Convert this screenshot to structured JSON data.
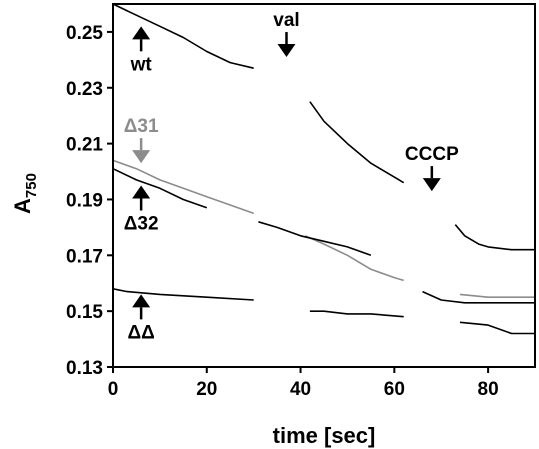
{
  "chart_data": {
    "type": "line",
    "xlabel": "time [sec]",
    "ylabel": "A",
    "ylabel_subscript": "750",
    "xlim": [
      0,
      90
    ],
    "ylim": [
      0.13,
      0.26
    ],
    "xticks": [
      0,
      20,
      40,
      60,
      80
    ],
    "xtick_labels": [
      "0",
      "20",
      "40",
      "60",
      "80"
    ],
    "yticks": [
      0.25,
      0.23,
      0.21,
      0.19,
      0.17,
      0.15,
      0.13
    ],
    "ytick_labels": [
      "0.25",
      "0.23",
      "0.21",
      "0.19",
      "0.17",
      "0.15",
      "0.13"
    ],
    "grid": false,
    "colors": {
      "black": "#000000",
      "gray": "#8c8c8c"
    },
    "series": [
      {
        "color": "black",
        "segments": [
          [
            [
              0,
              0.26
            ],
            [
              5,
              0.256
            ],
            [
              10,
              0.252
            ],
            [
              15,
              0.248
            ],
            [
              20,
              0.243
            ],
            [
              25,
              0.239
            ],
            [
              30,
              0.237
            ]
          ],
          [
            [
              42,
              0.225
            ],
            [
              45,
              0.218
            ],
            [
              50,
              0.21
            ],
            [
              55,
              0.203
            ],
            [
              60,
              0.198
            ],
            [
              62,
              0.196
            ]
          ],
          [
            [
              73,
              0.181
            ],
            [
              75,
              0.177
            ],
            [
              78,
              0.174
            ],
            [
              80,
              0.173
            ],
            [
              85,
              0.172
            ],
            [
              90,
              0.172
            ]
          ]
        ]
      },
      {
        "color": "gray",
        "segments": [
          [
            [
              0,
              0.204
            ],
            [
              5,
              0.201
            ],
            [
              10,
              0.197
            ],
            [
              15,
              0.194
            ],
            [
              20,
              0.191
            ],
            [
              25,
              0.188
            ],
            [
              30,
              0.185
            ]
          ],
          [
            [
              41,
              0.177
            ],
            [
              45,
              0.174
            ],
            [
              50,
              0.17
            ],
            [
              55,
              0.165
            ],
            [
              60,
              0.162
            ],
            [
              62,
              0.161
            ]
          ],
          [
            [
              74,
              0.156
            ],
            [
              80,
              0.155
            ],
            [
              85,
              0.155
            ],
            [
              90,
              0.155
            ]
          ]
        ]
      },
      {
        "color": "black",
        "segments": [
          [
            [
              0,
              0.201
            ],
            [
              5,
              0.197
            ],
            [
              10,
              0.194
            ],
            [
              15,
              0.19
            ],
            [
              20,
              0.187
            ]
          ],
          [
            [
              31,
              0.182
            ],
            [
              35,
              0.18
            ],
            [
              40,
              0.177
            ],
            [
              45,
              0.175
            ],
            [
              50,
              0.173
            ],
            [
              55,
              0.17
            ]
          ],
          [
            [
              66,
              0.157
            ],
            [
              70,
              0.154
            ],
            [
              75,
              0.153
            ],
            [
              80,
              0.153
            ],
            [
              90,
              0.153
            ]
          ]
        ]
      },
      {
        "color": "black",
        "segments": [
          [
            [
              0,
              0.158
            ],
            [
              3,
              0.157
            ],
            [
              10,
              0.156
            ],
            [
              20,
              0.155
            ],
            [
              30,
              0.154
            ]
          ],
          [
            [
              42,
              0.15
            ],
            [
              45,
              0.15
            ],
            [
              50,
              0.149
            ],
            [
              55,
              0.149
            ],
            [
              62,
              0.148
            ]
          ],
          [
            [
              74,
              0.146
            ],
            [
              80,
              0.145
            ],
            [
              85,
              0.142
            ],
            [
              90,
              0.142
            ]
          ]
        ]
      }
    ],
    "annotations": [
      {
        "label": "wt",
        "x": 6,
        "y": 0.252,
        "direction": "up",
        "color": "black",
        "label_pos": "below"
      },
      {
        "label": "Δ31",
        "x": 6,
        "y": 0.203,
        "direction": "down",
        "color": "gray",
        "label_pos": "above"
      },
      {
        "label": "Δ32",
        "x": 6,
        "y": 0.195,
        "direction": "up",
        "color": "black",
        "label_pos": "below"
      },
      {
        "label": "ΔΔ",
        "x": 6,
        "y": 0.156,
        "direction": "up",
        "color": "black",
        "label_pos": "below"
      },
      {
        "label": "val",
        "x": 37,
        "y": 0.241,
        "direction": "down",
        "color": "black",
        "label_pos": "above"
      },
      {
        "label": "CCCP",
        "x": 68,
        "y": 0.193,
        "direction": "down",
        "color": "black",
        "label_pos": "above"
      }
    ]
  }
}
